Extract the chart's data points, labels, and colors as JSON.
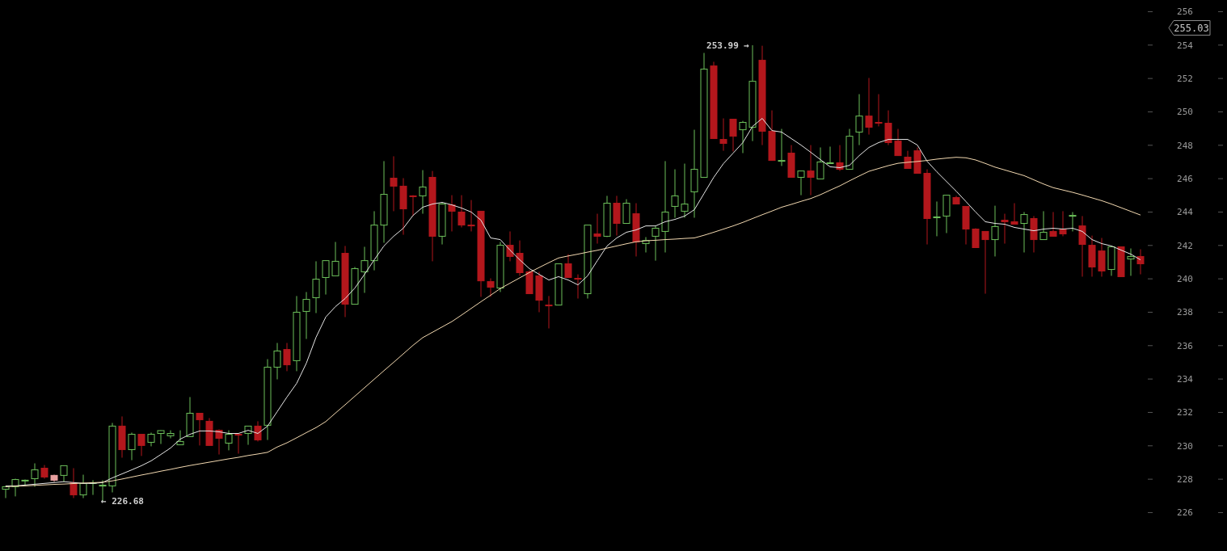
{
  "chart_data": {
    "type": "candlestick",
    "categories": [
      null,
      null,
      null,
      null,
      null,
      null,
      null,
      null,
      null,
      null,
      null,
      null,
      null,
      null,
      null,
      null,
      null,
      null,
      null,
      null,
      null,
      null,
      null,
      null,
      null,
      null,
      null,
      null,
      null,
      null,
      null,
      null,
      null,
      null,
      null,
      null,
      null,
      null,
      null,
      null,
      null,
      null,
      null,
      null,
      null,
      null,
      null,
      null,
      null,
      null,
      null,
      null,
      null,
      null,
      null,
      null,
      null,
      null,
      null,
      null,
      null,
      null,
      null,
      null,
      null,
      null,
      null,
      null,
      null,
      null,
      null,
      null,
      null,
      null,
      null,
      null,
      null,
      null,
      null,
      null,
      null,
      null,
      null,
      null,
      null,
      null,
      null,
      null,
      null,
      null,
      null,
      null,
      null,
      null,
      null,
      null,
      null,
      null,
      null,
      null,
      null,
      null,
      null,
      null,
      null,
      null,
      null,
      null,
      null,
      null,
      null,
      null,
      null,
      null,
      null,
      null,
      null,
      null
    ],
    "ohlc": [
      [
        227.4,
        227.6,
        226.87,
        227.55
      ],
      [
        227.55,
        228.03,
        226.97,
        227.98
      ],
      [
        227.91,
        227.98,
        227.6,
        227.94
      ],
      [
        228.03,
        228.95,
        227.55,
        228.56
      ],
      [
        228.66,
        228.85,
        228.03,
        228.13
      ],
      [
        228.23,
        228.27,
        227.84,
        227.94
      ],
      [
        228.23,
        228.81,
        227.84,
        228.81
      ],
      [
        227.79,
        228.66,
        226.87,
        227.06
      ],
      [
        227.06,
        228.27,
        226.87,
        227.74
      ],
      [
        227.74,
        227.94,
        227.06,
        227.79
      ],
      [
        227.62,
        227.94,
        226.68,
        227.64
      ],
      [
        227.6,
        231.37,
        227.21,
        231.18
      ],
      [
        231.18,
        231.76,
        229.29,
        229.77
      ],
      [
        229.77,
        230.79,
        229.14,
        230.69
      ],
      [
        230.69,
        230.69,
        229.39,
        230.02
      ],
      [
        230.21,
        230.79,
        229.97,
        230.69
      ],
      [
        230.74,
        230.93,
        230.11,
        230.91
      ],
      [
        230.6,
        230.93,
        230.45,
        230.74
      ],
      [
        230.06,
        230.93,
        230.06,
        230.26
      ],
      [
        230.55,
        232.92,
        230.55,
        231.95
      ],
      [
        231.95,
        231.95,
        230.02,
        231.56
      ],
      [
        231.47,
        231.66,
        230.02,
        230.02
      ],
      [
        230.93,
        230.98,
        229.48,
        230.45
      ],
      [
        230.16,
        230.93,
        229.73,
        230.69
      ],
      [
        230.69,
        230.69,
        229.53,
        230.67
      ],
      [
        230.74,
        231.18,
        230.06,
        231.18
      ],
      [
        231.18,
        231.47,
        230.26,
        230.35
      ],
      [
        231.23,
        235.19,
        230.35,
        234.71
      ],
      [
        234.71,
        236.16,
        233.98,
        235.68
      ],
      [
        235.77,
        236.16,
        234.47,
        234.85
      ],
      [
        235.1,
        238.97,
        234.47,
        238.0
      ],
      [
        238.05,
        239.21,
        236.4,
        238.77
      ],
      [
        238.87,
        241.05,
        237.95,
        239.98
      ],
      [
        240.08,
        241.09,
        239.06,
        241.09
      ],
      [
        240.18,
        242.21,
        240.18,
        241.05
      ],
      [
        241.53,
        241.97,
        237.71,
        238.48
      ],
      [
        238.48,
        240.71,
        238.48,
        240.61
      ],
      [
        240.42,
        241.92,
        239.16,
        241.09
      ],
      [
        241.09,
        244.05,
        240.51,
        243.22
      ],
      [
        243.22,
        247.05,
        242.16,
        245.06
      ],
      [
        246.03,
        247.34,
        244.05,
        245.55
      ],
      [
        245.55,
        246.03,
        242.64,
        244.19
      ],
      [
        244.97,
        245.01,
        243.76,
        244.94
      ],
      [
        244.97,
        246.51,
        243.9,
        245.5
      ],
      [
        246.08,
        246.46,
        241.05,
        242.55
      ],
      [
        242.55,
        244.58,
        242.06,
        244.48
      ],
      [
        244.43,
        245.01,
        242.84,
        244.05
      ],
      [
        244.0,
        245.01,
        243.08,
        243.22
      ],
      [
        243.22,
        244.72,
        242.84,
        243.2
      ],
      [
        244.05,
        244.05,
        238.92,
        239.88
      ],
      [
        239.84,
        240.03,
        238.92,
        239.5
      ],
      [
        239.45,
        242.21,
        239.21,
        242.01
      ],
      [
        242.01,
        242.84,
        241.05,
        241.34
      ],
      [
        241.53,
        242.3,
        240.18,
        240.37
      ],
      [
        240.42,
        240.51,
        239.11,
        239.11
      ],
      [
        240.18,
        240.42,
        238.0,
        238.72
      ],
      [
        238.43,
        238.97,
        237.03,
        238.41
      ],
      [
        238.43,
        240.9,
        238.43,
        240.9
      ],
      [
        240.9,
        241.48,
        240.08,
        240.08
      ],
      [
        240.03,
        240.27,
        238.82,
        240.01
      ],
      [
        239.11,
        243.22,
        238.82,
        243.22
      ],
      [
        242.69,
        243.9,
        242.11,
        242.55
      ],
      [
        242.55,
        244.97,
        242.5,
        244.53
      ],
      [
        244.53,
        244.97,
        242.59,
        243.32
      ],
      [
        243.32,
        244.77,
        243.32,
        244.53
      ],
      [
        243.9,
        244.53,
        241.34,
        242.21
      ],
      [
        242.11,
        242.5,
        241.58,
        242.3
      ],
      [
        242.55,
        243.17,
        241.09,
        243.03
      ],
      [
        242.84,
        247.05,
        241.58,
        244.0
      ],
      [
        244.34,
        246.56,
        243.66,
        244.97
      ],
      [
        244.05,
        246.9,
        243.66,
        244.48
      ],
      [
        245.21,
        248.93,
        243.66,
        246.56
      ],
      [
        246.08,
        253.53,
        246.08,
        252.56
      ],
      [
        252.75,
        253.0,
        248.4,
        248.4
      ],
      [
        248.35,
        249.61,
        247.67,
        248.11
      ],
      [
        249.56,
        249.56,
        247.63,
        248.54
      ],
      [
        248.93,
        249.46,
        247.53,
        249.37
      ],
      [
        249.08,
        253.99,
        248.25,
        251.83
      ],
      [
        253.09,
        253.96,
        248.01,
        248.84
      ],
      [
        248.84,
        250.09,
        247.09,
        247.09
      ],
      [
        247.07,
        248.98,
        246.76,
        247.09
      ],
      [
        247.53,
        248.01,
        246.08,
        246.08
      ],
      [
        246.08,
        246.46,
        245.01,
        246.46
      ],
      [
        246.46,
        248.01,
        245.01,
        246.08
      ],
      [
        245.98,
        247.87,
        245.98,
        247.0
      ],
      [
        246.93,
        247.92,
        246.9,
        246.95
      ],
      [
        246.95,
        248.01,
        246.46,
        246.56
      ],
      [
        246.56,
        248.98,
        246.56,
        248.54
      ],
      [
        248.79,
        251.06,
        248.01,
        249.75
      ],
      [
        249.75,
        252.03,
        248.64,
        249.08
      ],
      [
        249.37,
        251.06,
        249.13,
        249.34
      ],
      [
        249.32,
        250.09,
        248.01,
        248.16
      ],
      [
        248.25,
        248.98,
        247.38,
        247.38
      ],
      [
        247.29,
        247.67,
        246.61,
        246.61
      ],
      [
        247.67,
        247.87,
        246.32,
        246.32
      ],
      [
        246.32,
        246.56,
        242.06,
        243.61
      ],
      [
        243.68,
        244.63,
        242.55,
        243.71
      ],
      [
        243.76,
        245.01,
        242.74,
        245.01
      ],
      [
        244.87,
        244.97,
        244.48,
        244.48
      ],
      [
        244.34,
        244.34,
        242.06,
        242.98
      ],
      [
        242.98,
        243.03,
        241.87,
        241.87
      ],
      [
        242.84,
        242.84,
        239.11,
        242.35
      ],
      [
        242.35,
        244.38,
        241.34,
        243.13
      ],
      [
        243.51,
        243.9,
        242.11,
        243.42
      ],
      [
        243.42,
        244.53,
        243.27,
        243.27
      ],
      [
        243.32,
        244.0,
        241.58,
        243.85
      ],
      [
        243.61,
        243.76,
        241.58,
        242.35
      ],
      [
        242.35,
        244.05,
        242.35,
        242.79
      ],
      [
        242.84,
        244.0,
        242.55,
        242.55
      ],
      [
        242.98,
        244.05,
        242.55,
        242.69
      ],
      [
        243.76,
        244.0,
        242.84,
        243.8
      ],
      [
        243.17,
        243.76,
        240.13,
        242.06
      ],
      [
        242.01,
        242.59,
        240.13,
        240.71
      ],
      [
        241.67,
        242.45,
        240.13,
        240.47
      ],
      [
        240.56,
        241.92,
        240.18,
        241.92
      ],
      [
        241.92,
        241.92,
        240.13,
        240.13
      ],
      [
        241.19,
        241.82,
        240.18,
        241.34
      ],
      [
        241.34,
        241.77,
        240.27,
        240.9
      ]
    ],
    "colors": [
      "#6cbf5a",
      "#6cbf5a",
      "#6cbf5a",
      "#6cbf5a",
      "#b3171c",
      "#e8a0a0",
      "#6cbf5a",
      "#b3171c",
      "#6cbf5a",
      "#6cbf5a",
      "#6cbf5a",
      "#6cbf5a",
      "#b3171c",
      "#6cbf5a",
      "#b3171c",
      "#6cbf5a",
      "#6cbf5a",
      "#6cbf5a",
      "#6cbf5a",
      "#6cbf5a",
      "#b3171c",
      "#b3171c",
      "#b3171c",
      "#6cbf5a",
      "#b3171c",
      "#6cbf5a",
      "#b3171c",
      "#6cbf5a",
      "#6cbf5a",
      "#b3171c",
      "#6cbf5a",
      "#6cbf5a",
      "#6cbf5a",
      "#6cbf5a",
      "#6cbf5a",
      "#b3171c",
      "#6cbf5a",
      "#6cbf5a",
      "#6cbf5a",
      "#6cbf5a",
      "#b3171c",
      "#b3171c",
      "#b3171c",
      "#6cbf5a",
      "#b3171c",
      "#6cbf5a",
      "#b3171c",
      "#b3171c",
      "#b3171c",
      "#b3171c",
      "#b3171c",
      "#6cbf5a",
      "#b3171c",
      "#b3171c",
      "#b3171c",
      "#b3171c",
      "#b3171c",
      "#6cbf5a",
      "#b3171c",
      "#b3171c",
      "#6cbf5a",
      "#b3171c",
      "#6cbf5a",
      "#b3171c",
      "#6cbf5a",
      "#b3171c",
      "#6cbf5a",
      "#6cbf5a",
      "#6cbf5a",
      "#6cbf5a",
      "#6cbf5a",
      "#6cbf5a",
      "#6cbf5a",
      "#b3171c",
      "#b3171c",
      "#b3171c",
      "#6cbf5a",
      "#6cbf5a",
      "#b3171c",
      "#b3171c",
      "#6cbf5a",
      "#b3171c",
      "#6cbf5a",
      "#b3171c",
      "#6cbf5a",
      "#6cbf5a",
      "#b3171c",
      "#6cbf5a",
      "#6cbf5a",
      "#b3171c",
      "#b3171c",
      "#b3171c",
      "#b3171c",
      "#b3171c",
      "#b3171c",
      "#b3171c",
      "#6cbf5a",
      "#6cbf5a",
      "#b3171c",
      "#b3171c",
      "#b3171c",
      "#b3171c",
      "#6cbf5a",
      "#b3171c",
      "#b3171c",
      "#6cbf5a",
      "#b3171c",
      "#6cbf5a",
      "#b3171c",
      "#b3171c",
      "#6cbf5a",
      "#b3171c",
      "#b3171c",
      "#b3171c",
      "#6cbf5a",
      "#b3171c",
      "#6cbf5a",
      "#b3171c"
    ],
    "series": [
      {
        "type": "line",
        "color": "#e6e6e6",
        "values": [
          227.6,
          227.6,
          227.65,
          227.7,
          227.75,
          227.8,
          227.85,
          227.8,
          227.75,
          227.75,
          227.8,
          228.08,
          228.32,
          228.56,
          228.81,
          229.1,
          229.48,
          229.87,
          230.4,
          230.69,
          230.89,
          230.89,
          230.84,
          230.74,
          230.74,
          230.93,
          230.74,
          231.18,
          232.05,
          232.92,
          233.74,
          234.95,
          236.5,
          237.71,
          238.34,
          238.82,
          239.45,
          240.27,
          241.14,
          241.97,
          242.55,
          243.03,
          243.8,
          244.29,
          244.48,
          244.58,
          244.43,
          244.24,
          244.0,
          243.51,
          242.45,
          242.35,
          241.72,
          241.14,
          240.61,
          240.27,
          239.93,
          240.13,
          239.93,
          239.64,
          240.18,
          241.09,
          241.97,
          242.45,
          242.79,
          242.93,
          243.17,
          243.17,
          243.42,
          243.56,
          243.76,
          244.14,
          245.11,
          246.08,
          246.9,
          247.53,
          248.16,
          249.13,
          249.61,
          248.88,
          248.79,
          248.4,
          248.01,
          247.58,
          247.14,
          246.71,
          246.66,
          246.8,
          247.38,
          247.87,
          248.16,
          248.35,
          248.35,
          248.35,
          248.01,
          247.04,
          246.41,
          245.83,
          245.25,
          244.63,
          244.0,
          243.42,
          243.32,
          243.27,
          243.08,
          242.98,
          242.88,
          242.98,
          243.03,
          242.98,
          243.03,
          242.84,
          242.35,
          242.11,
          241.97,
          241.72,
          241.48,
          241.14
        ]
      },
      {
        "type": "line",
        "color": "#f3d9b1",
        "values": [
          227.55,
          227.58,
          227.6,
          227.63,
          227.66,
          227.69,
          227.71,
          227.74,
          227.77,
          227.79,
          227.82,
          227.9,
          228.01,
          228.13,
          228.25,
          228.36,
          228.48,
          228.59,
          228.71,
          228.82,
          228.92,
          229.02,
          229.12,
          229.22,
          229.31,
          229.42,
          229.51,
          229.61,
          229.93,
          230.18,
          230.48,
          230.79,
          231.09,
          231.45,
          231.96,
          232.46,
          232.97,
          233.48,
          233.99,
          234.5,
          235.0,
          235.51,
          236.02,
          236.48,
          236.8,
          237.12,
          237.44,
          237.83,
          238.23,
          238.63,
          239.02,
          239.42,
          239.74,
          240.06,
          240.38,
          240.68,
          240.97,
          241.25,
          241.37,
          241.48,
          241.6,
          241.71,
          241.84,
          241.97,
          242.1,
          242.22,
          242.28,
          242.31,
          242.35,
          242.38,
          242.42,
          242.45,
          242.61,
          242.79,
          242.98,
          243.17,
          243.38,
          243.61,
          243.84,
          244.06,
          244.29,
          244.46,
          244.64,
          244.81,
          245.04,
          245.31,
          245.57,
          245.87,
          246.16,
          246.44,
          246.61,
          246.78,
          246.92,
          246.98,
          247.03,
          247.09,
          247.17,
          247.23,
          247.28,
          247.25,
          247.12,
          246.91,
          246.69,
          246.52,
          246.35,
          246.18,
          245.93,
          245.68,
          245.46,
          245.32,
          245.18,
          245.02,
          244.85,
          244.68,
          244.48,
          244.26,
          244.04,
          243.82
        ]
      }
    ],
    "ylim": [
      223.7,
      256.7
    ],
    "yticks": [
      226,
      228,
      230,
      232,
      234,
      236,
      238,
      240,
      242,
      244,
      246,
      248,
      250,
      252,
      254,
      256
    ],
    "annotations": [
      "253.99 →",
      "← 226.68",
      "255.03"
    ]
  }
}
